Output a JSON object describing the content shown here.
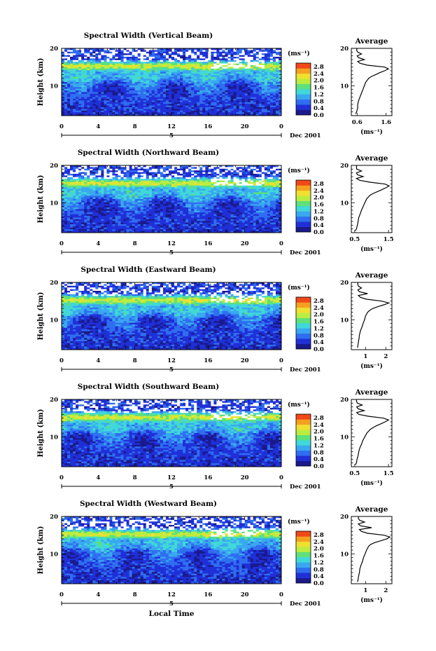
{
  "chart_data": {
    "type": "heatmap",
    "date_label": "Dec 2001",
    "day_label": "5",
    "x_label": "Local Time",
    "x_ticks": [
      "0",
      "4",
      "8",
      "12",
      "16",
      "20",
      "0"
    ],
    "y_label": "Height (km)",
    "y_ticks": [
      "10",
      "20"
    ],
    "ylim": [
      2,
      20
    ],
    "colorbar_unit": "(ms⁻¹)",
    "colorbar_ticks": [
      "0.0",
      "0.4",
      "0.8",
      "1.2",
      "1.6",
      "2.0",
      "2.4",
      "2.8"
    ],
    "colorbar_range": [
      0.0,
      3.0
    ],
    "colors": [
      "#1a1a8c",
      "#2030d8",
      "#2f6ef0",
      "#3aa8f0",
      "#40d8d8",
      "#5ee07a",
      "#bcec40",
      "#f0e030",
      "#f5a020",
      "#f04818"
    ],
    "profile_title": "Average",
    "profile_unit": "(ms⁻¹)",
    "panels": [
      {
        "title": "Spectral Width (Vertical Beam)",
        "profile_xticks": [
          "0.6",
          "1.6"
        ],
        "profile_xlim": [
          0.4,
          1.8
        ],
        "profile": {
          "height": [
            2.5,
            3,
            4,
            5,
            6,
            7,
            8,
            9,
            10,
            11,
            12,
            12.5,
            13,
            13.5,
            14,
            14.5,
            15,
            15.5,
            16,
            16.5,
            17,
            17.5,
            18,
            18.5,
            19,
            19.5,
            20
          ],
          "width": [
            0.55,
            0.58,
            0.62,
            0.62,
            0.65,
            0.7,
            0.75,
            0.8,
            0.85,
            0.9,
            1.0,
            1.1,
            1.25,
            1.38,
            1.55,
            1.68,
            1.55,
            0.95,
            0.7,
            0.62,
            0.85,
            0.65,
            0.6,
            0.75,
            0.62,
            0.58,
            0.6
          ]
        }
      },
      {
        "title": "Spectral Width (Northward Beam)",
        "profile_xticks": [
          "0.5",
          "1.5"
        ],
        "profile_xlim": [
          0.4,
          1.6
        ],
        "profile": {
          "height": [
            2.5,
            3,
            4,
            5,
            6,
            7,
            8,
            9,
            10,
            11,
            12,
            12.5,
            13,
            13.5,
            14,
            14.5,
            15,
            15.5,
            16,
            16.5,
            17,
            17.5,
            18,
            18.5,
            19,
            19.5,
            20
          ],
          "width": [
            0.52,
            0.55,
            0.58,
            0.6,
            0.62,
            0.66,
            0.7,
            0.75,
            0.8,
            0.85,
            0.95,
            1.05,
            1.18,
            1.3,
            1.42,
            1.52,
            1.4,
            0.95,
            0.65,
            0.55,
            0.75,
            0.58,
            0.55,
            0.7,
            0.56,
            0.55,
            0.56
          ]
        }
      },
      {
        "title": "Spectral Width (Eastward Beam)",
        "profile_xticks": [
          "1",
          "2"
        ],
        "profile_xlim": [
          0.3,
          2.3
        ],
        "profile": {
          "height": [
            2.5,
            3,
            4,
            5,
            6,
            7,
            8,
            9,
            10,
            11,
            12,
            12.5,
            13,
            13.5,
            14,
            14.5,
            15,
            15.5,
            16,
            16.5,
            17,
            17.5,
            18,
            18.5,
            19,
            19.5,
            20
          ],
          "width": [
            0.6,
            0.62,
            0.65,
            0.68,
            0.7,
            0.75,
            0.82,
            0.88,
            0.95,
            1.0,
            1.1,
            1.2,
            1.35,
            1.6,
            1.9,
            2.15,
            1.8,
            1.05,
            0.75,
            0.65,
            1.1,
            0.7,
            0.62,
            0.8,
            0.65,
            0.62,
            0.62
          ]
        }
      },
      {
        "title": "Spectral Width (Southward Beam)",
        "profile_xticks": [
          "0.5",
          "1.5"
        ],
        "profile_xlim": [
          0.4,
          1.6
        ],
        "profile": {
          "height": [
            2.5,
            3,
            4,
            5,
            6,
            7,
            8,
            9,
            10,
            11,
            12,
            12.5,
            13,
            13.5,
            14,
            14.5,
            15,
            15.5,
            16,
            16.5,
            17,
            17.5,
            18,
            18.5,
            19,
            19.5,
            20
          ],
          "width": [
            0.52,
            0.55,
            0.57,
            0.6,
            0.62,
            0.65,
            0.7,
            0.74,
            0.8,
            0.86,
            0.96,
            1.05,
            1.15,
            1.28,
            1.4,
            1.5,
            1.35,
            0.9,
            0.62,
            0.56,
            0.78,
            0.6,
            0.56,
            0.72,
            0.58,
            0.55,
            0.56
          ]
        }
      },
      {
        "title": "Spectral Width (Westward Beam)",
        "profile_xticks": [
          "1",
          "2"
        ],
        "profile_xlim": [
          0.3,
          2.3
        ],
        "profile": {
          "height": [
            2.5,
            3,
            4,
            5,
            6,
            7,
            8,
            9,
            10,
            11,
            12,
            12.5,
            13,
            13.5,
            14,
            14.5,
            15,
            15.5,
            16,
            16.5,
            17,
            17.5,
            18,
            18.5,
            19,
            19.5,
            20
          ],
          "width": [
            0.6,
            0.63,
            0.66,
            0.7,
            0.72,
            0.78,
            0.85,
            0.9,
            0.98,
            1.05,
            1.15,
            1.25,
            1.45,
            1.75,
            2.05,
            2.2,
            1.9,
            1.1,
            0.8,
            0.7,
            1.3,
            0.75,
            0.65,
            0.95,
            0.7,
            0.65,
            0.65
          ]
        }
      }
    ]
  }
}
